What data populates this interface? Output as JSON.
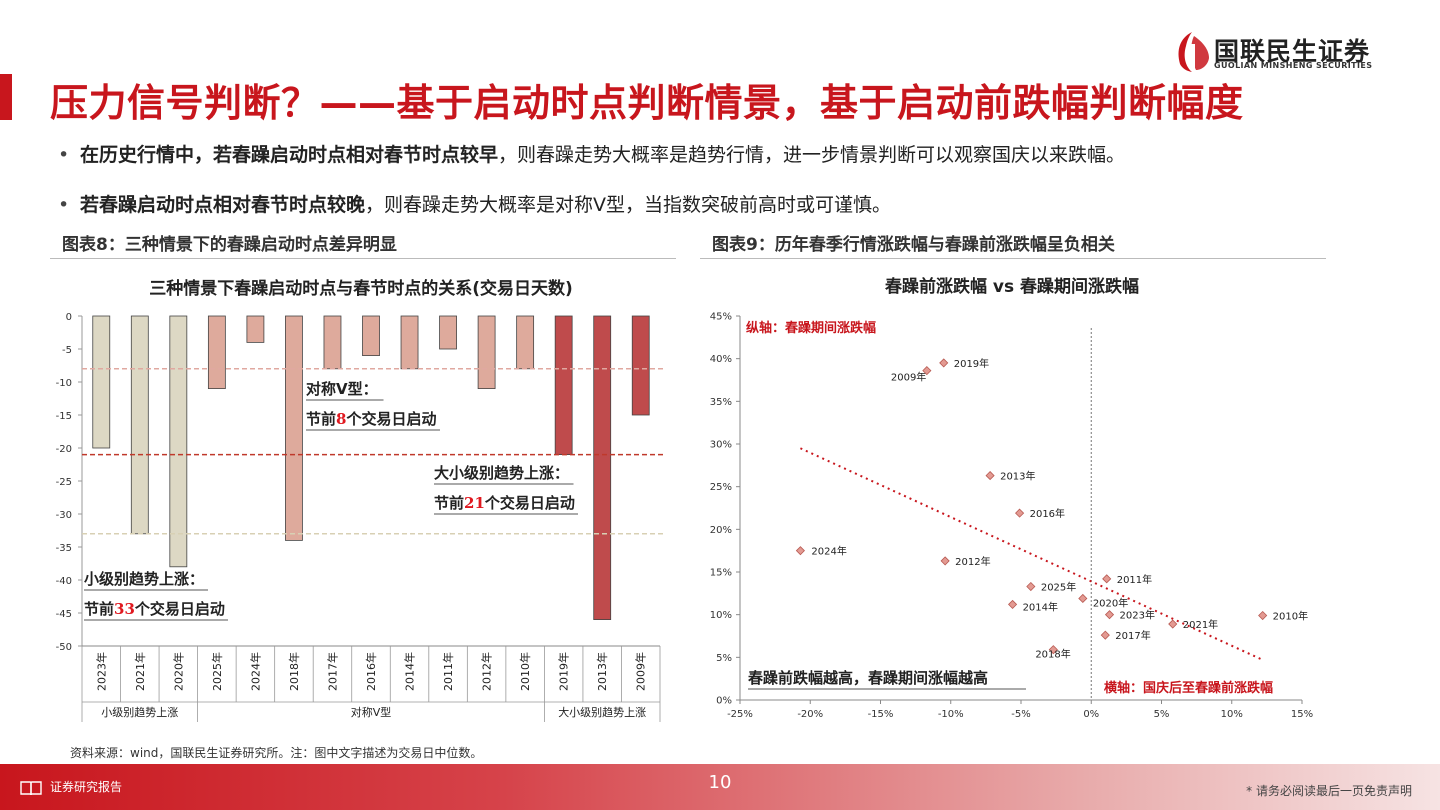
{
  "header": {
    "logo_cn": "国联民生证券",
    "logo_en": "GUOLIAN MINSHENG SECURITIES",
    "title": "压力信号判断？——基于启动时点判断情景，基于启动前跌幅判断幅度",
    "accent_color": "#c8161d"
  },
  "bullets": [
    {
      "bold": "在历史行情中，若春躁启动时点相对春节时点较早",
      "rest": "，则春躁走势大概率是趋势行情，进一步情景判断可以观察国庆以来跌幅。"
    },
    {
      "bold": "若春躁启动时点相对春节时点较晚",
      "rest": "，则春躁走势大概率是对称V型，当指数突破前高时或可谨慎。"
    }
  ],
  "figure8": {
    "caption": "图表8：三种情景下的春躁启动时点差异明显"
  },
  "figure9": {
    "caption": "图表9：历年春季行情涨跌幅与春躁前涨跌幅呈负相关"
  },
  "source": "资料来源：wind，国联民生证券研究所。注：图中文字描述为交易日中位数。",
  "footer": {
    "left": "证券研究报告",
    "page": "10",
    "disclaimer": "* 请务必阅读最后一页免责声明"
  },
  "chart_data": [
    {
      "type": "bar",
      "title": "三种情景下春躁启动时点与春节时点的关系(交易日天数)",
      "categories": [
        "2023年",
        "2021年",
        "2020年",
        "2025年",
        "2024年",
        "2018年",
        "2017年",
        "2016年",
        "2014年",
        "2011年",
        "2012年",
        "2010年",
        "2019年",
        "2013年",
        "2009年"
      ],
      "values": [
        -20,
        -33,
        -38,
        -11,
        -4,
        -34,
        -8,
        -6,
        -8,
        -5,
        -11,
        -8,
        -21,
        -46,
        -15
      ],
      "groups": [
        {
          "name": "小级别趋势上涨",
          "start": 0,
          "end": 2,
          "color": "#ddd8c4"
        },
        {
          "name": "对称V型",
          "start": 3,
          "end": 11,
          "color": "#deaa9c"
        },
        {
          "name": "大小级别趋势上涨",
          "start": 12,
          "end": 14,
          "color": "#bf4b4c"
        }
      ],
      "y_ticks": [
        0,
        -5,
        -10,
        -15,
        -20,
        -25,
        -30,
        -35,
        -40,
        -45,
        -50
      ],
      "ylim": [
        -50,
        0
      ],
      "reference_lines": [
        {
          "value": -8,
          "color": "#e0a8a0"
        },
        {
          "value": -21,
          "color": "#c0392b"
        },
        {
          "value": -33,
          "color": "#d8d0b4"
        }
      ],
      "annotations": [
        {
          "line1": "对称V型：",
          "prefix": "节前",
          "num": "8",
          "suffix": "个交易日启动"
        },
        {
          "line1": "大小级别趋势上涨：",
          "prefix": "节前",
          "num": "21",
          "suffix": "个交易日启动"
        },
        {
          "line1": "小级别趋势上涨：",
          "prefix": "节前",
          "num": "33",
          "suffix": "个交易日启动"
        }
      ],
      "highlight_color": "#e0181f"
    },
    {
      "type": "scatter",
      "title": "春躁前涨跌幅 vs 春躁期间涨跌幅",
      "xlim": [
        -0.25,
        0.15
      ],
      "ylim": [
        0,
        0.45
      ],
      "x_ticks": [
        "-25%",
        "-20%",
        "-15%",
        "-10%",
        "-5%",
        "0%",
        "5%",
        "10%",
        "15%"
      ],
      "y_ticks": [
        "0%",
        "5%",
        "10%",
        "15%",
        "20%",
        "25%",
        "30%",
        "35%",
        "40%",
        "45%"
      ],
      "points": [
        {
          "label": "2019年",
          "x": -0.105,
          "y": 0.395
        },
        {
          "label": "2009年",
          "x": -0.117,
          "y": 0.386
        },
        {
          "label": "2013年",
          "x": -0.072,
          "y": 0.263
        },
        {
          "label": "2016年",
          "x": -0.051,
          "y": 0.219
        },
        {
          "label": "2024年",
          "x": -0.207,
          "y": 0.175
        },
        {
          "label": "2012年",
          "x": -0.104,
          "y": 0.163
        },
        {
          "label": "2011年",
          "x": 0.011,
          "y": 0.142
        },
        {
          "label": "2025年",
          "x": -0.043,
          "y": 0.133
        },
        {
          "label": "2020年",
          "x": -0.006,
          "y": 0.119
        },
        {
          "label": "2014年",
          "x": -0.056,
          "y": 0.112
        },
        {
          "label": "2023年",
          "x": 0.013,
          "y": 0.1
        },
        {
          "label": "2010年",
          "x": 0.122,
          "y": 0.099
        },
        {
          "label": "2021年",
          "x": 0.058,
          "y": 0.089
        },
        {
          "label": "2017年",
          "x": 0.01,
          "y": 0.076
        },
        {
          "label": "2018年",
          "x": -0.027,
          "y": 0.059
        }
      ],
      "trendline": {
        "x1": -0.207,
        "y1": 0.295,
        "x2": 0.122,
        "y2": 0.047
      },
      "y_axis_note": "纵轴：春躁期间涨跌幅",
      "x_axis_note": "横轴：国庆后至春躁前涨跌幅",
      "insight": "春躁前跌幅越高，春躁期间涨幅越高",
      "point_color": "#e39a92"
    }
  ]
}
